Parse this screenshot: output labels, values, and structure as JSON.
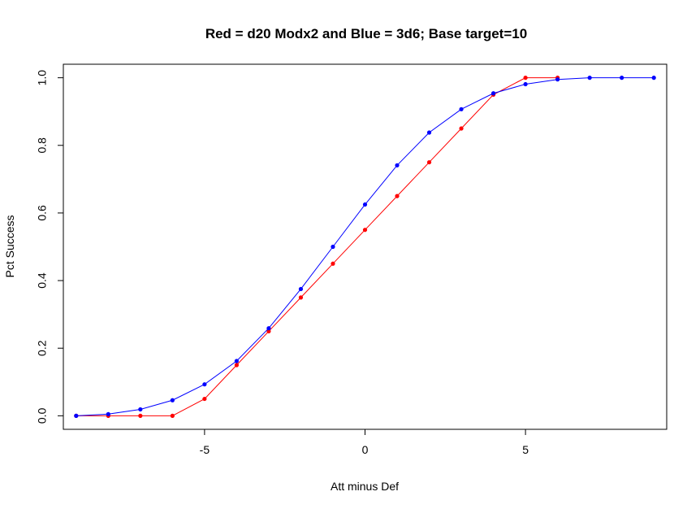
{
  "chart_data": {
    "type": "line",
    "title": "Red = d20 Modx2 and  Blue = 3d6; Base target=10",
    "xlabel": "Att minus Def",
    "ylabel": "Pct Success",
    "xlim": [
      -9.4,
      9.4
    ],
    "ylim": [
      -0.04,
      1.04
    ],
    "xticks": [
      -5,
      0,
      5
    ],
    "xtick_labels": [
      "-5",
      "0",
      "5"
    ],
    "yticks": [
      0.0,
      0.2,
      0.4,
      0.6,
      0.8,
      1.0
    ],
    "ytick_labels": [
      "0.0",
      "0.2",
      "0.4",
      "0.6",
      "0.8",
      "1.0"
    ],
    "grid": false,
    "series": [
      {
        "color": "#ff0000",
        "x": [
          -9,
          -8,
          -7,
          -6,
          -5,
          -4,
          -3,
          -2,
          -1,
          0,
          1,
          2,
          3,
          4,
          5,
          6
        ],
        "y": [
          0.0,
          0.0,
          0.0,
          0.0,
          0.05,
          0.15,
          0.25,
          0.35,
          0.45,
          0.55,
          0.65,
          0.75,
          0.85,
          0.95,
          1.0,
          1.0
        ]
      },
      {
        "color": "#0000ff",
        "x": [
          -9,
          -8,
          -7,
          -6,
          -5,
          -4,
          -3,
          -2,
          -1,
          0,
          1,
          2,
          3,
          4,
          5,
          6,
          7,
          8,
          9
        ],
        "y": [
          0.0,
          0.005,
          0.019,
          0.046,
          0.093,
          0.162,
          0.259,
          0.375,
          0.5,
          0.625,
          0.741,
          0.838,
          0.907,
          0.954,
          0.981,
          0.995,
          1.0,
          1.0,
          1.0
        ]
      }
    ]
  }
}
